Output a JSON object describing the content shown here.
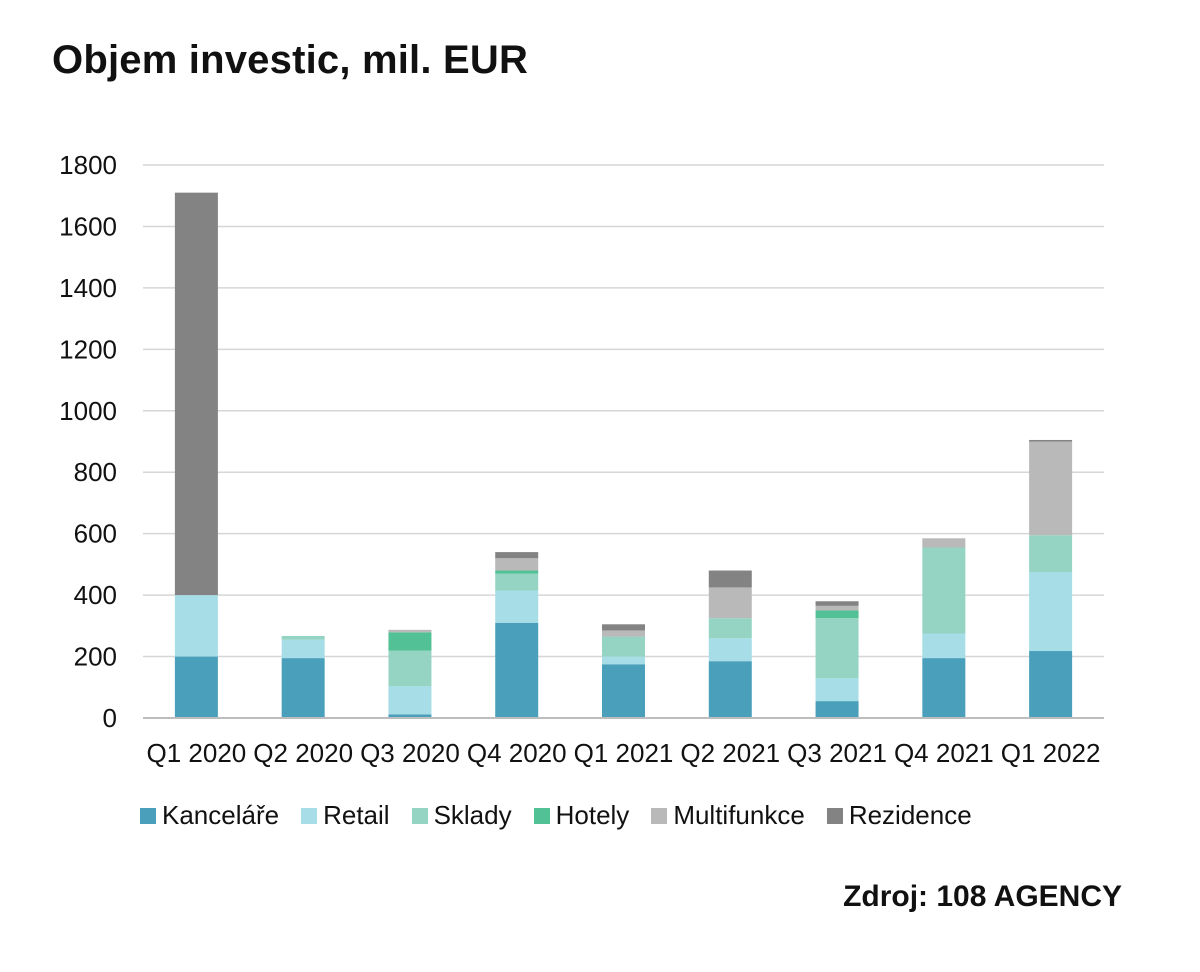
{
  "title": "Objem investic, mil. EUR",
  "source": "Zdroj: 108 AGENCY",
  "chart_data": {
    "type": "bar",
    "stacked": true,
    "title": "Objem investic, mil. EUR",
    "xlabel": "",
    "ylabel": "",
    "ylim": [
      0,
      1800
    ],
    "yticks": [
      0,
      200,
      400,
      600,
      800,
      1000,
      1200,
      1400,
      1600,
      1800
    ],
    "ytick_labels": [
      "0",
      "200",
      "400",
      "600",
      "800",
      "1000",
      "1200",
      "1400",
      "1600",
      "1800"
    ],
    "grid": true,
    "legend_position": "bottom",
    "categories": [
      "Q1 2020",
      "Q2 2020",
      "Q3 2020",
      "Q4 2020",
      "Q1 2021",
      "Q2 2021",
      "Q3 2021",
      "Q4 2021",
      "Q1 2022"
    ],
    "series": [
      {
        "name": "Kanceláře",
        "color": "#4aa0bb",
        "values": [
          200,
          195,
          12,
          310,
          175,
          185,
          55,
          195,
          218
        ]
      },
      {
        "name": "Retail",
        "color": "#a6dde6",
        "values": [
          200,
          60,
          92,
          105,
          25,
          75,
          75,
          80,
          257
        ]
      },
      {
        "name": "Sklady",
        "color": "#95d4c2",
        "values": [
          0,
          12,
          115,
          55,
          65,
          65,
          195,
          280,
          120
        ]
      },
      {
        "name": "Hotely",
        "color": "#52c196",
        "values": [
          0,
          0,
          60,
          10,
          0,
          0,
          25,
          0,
          0
        ]
      },
      {
        "name": "Multifunkce",
        "color": "#b9b9b9",
        "values": [
          0,
          0,
          8,
          40,
          20,
          100,
          15,
          30,
          305
        ]
      },
      {
        "name": "Rezidence",
        "color": "#838383",
        "values": [
          1310,
          0,
          0,
          20,
          20,
          55,
          15,
          0,
          5
        ]
      }
    ]
  }
}
